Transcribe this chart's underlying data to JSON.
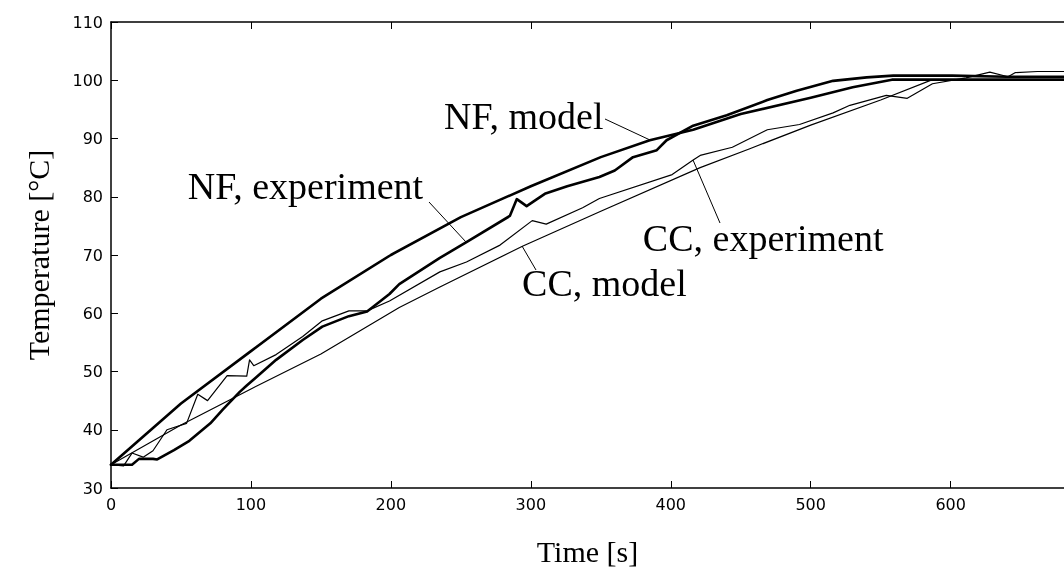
{
  "chart_data": {
    "type": "line",
    "xlabel": "Time [s]",
    "ylabel": "Temperature [°C]",
    "xlim": [
      0,
      681
    ],
    "ylim": [
      30,
      110
    ],
    "xticks": [
      0,
      100,
      200,
      300,
      400,
      500,
      600
    ],
    "yticks": [
      30,
      40,
      50,
      60,
      70,
      80,
      90,
      100,
      110
    ],
    "grid": false,
    "marker": "none",
    "line_style": "solid",
    "series": [
      {
        "color": "#000000",
        "x": [
          0,
          50,
          100,
          150,
          200,
          250,
          300,
          350,
          385,
          416,
          450,
          500,
          530,
          558,
          600,
          681
        ],
        "values": [
          34,
          44.5,
          53.5,
          62.5,
          70,
          76.5,
          81.8,
          86.8,
          89.7,
          91.5,
          94.2,
          97,
          98.8,
          100.1,
          100.1,
          100.1
        ]
      },
      {
        "color": "#000000",
        "x": [
          0,
          15,
          20,
          30,
          33,
          45,
          56,
          71,
          80,
          92,
          97,
          118,
          137,
          151,
          170,
          183,
          199,
          206,
          235,
          254,
          285,
          290,
          297,
          310,
          326,
          349,
          360,
          373,
          390,
          397,
          416,
          440,
          469,
          490,
          516,
          540,
          559,
          601,
          640,
          681
        ],
        "values": [
          34,
          34,
          35,
          35,
          34.9,
          36.5,
          38.1,
          41.1,
          43.5,
          46.5,
          47.6,
          52,
          55.4,
          57.7,
          59.5,
          60.3,
          63.3,
          65,
          69.5,
          72.2,
          76.7,
          79.6,
          78.4,
          80.5,
          81.8,
          83.4,
          84.5,
          86.8,
          88,
          89.7,
          92.2,
          94,
          96.6,
          98.2,
          99.9,
          100.5,
          100.8,
          100.8,
          100.6,
          100.6
        ]
      },
      {
        "color": "#000000",
        "x": [
          0,
          50,
          100,
          150,
          206,
          235,
          294,
          350,
          421,
          456,
          500,
          550,
          587,
          681
        ],
        "values": [
          34,
          40.8,
          47,
          53,
          61,
          64.5,
          71.5,
          77.5,
          85,
          88.2,
          92.3,
          96.6,
          100.1,
          100.1
        ]
      },
      {
        "color": "#000000",
        "x": [
          0,
          9,
          15,
          23,
          30,
          40,
          54,
          62,
          69,
          83,
          97,
          99,
          102,
          118,
          137,
          151,
          170,
          183,
          199,
          235,
          254,
          278,
          301,
          311,
          337,
          349,
          401,
          416,
          421,
          444,
          469,
          492,
          516,
          528,
          554,
          569,
          587,
          611,
          628,
          641,
          646,
          662,
          681
        ],
        "values": [
          34,
          33.8,
          36,
          35.3,
          36.4,
          40,
          41.1,
          46.1,
          45,
          49.3,
          49.2,
          52,
          51,
          52.9,
          56,
          58.7,
          60.4,
          60.4,
          62.1,
          67.1,
          68.8,
          71.7,
          75.9,
          75.3,
          78.1,
          79.7,
          83.8,
          86.3,
          87.1,
          88.5,
          91.5,
          92.4,
          94.4,
          95.7,
          97.4,
          96.9,
          99.4,
          100.4,
          101.4,
          100.6,
          101.3,
          101.5,
          101.5
        ]
      }
    ],
    "annotations": [
      {
        "text": "NF, model",
        "x": 385,
        "y": 89.7
      },
      {
        "text": "NF, experiment",
        "x": 254,
        "y": 72.2
      },
      {
        "text": "CC, experiment",
        "x": 416,
        "y": 86.3
      },
      {
        "text": "CC, model",
        "x": 294,
        "y": 71.5
      }
    ]
  }
}
